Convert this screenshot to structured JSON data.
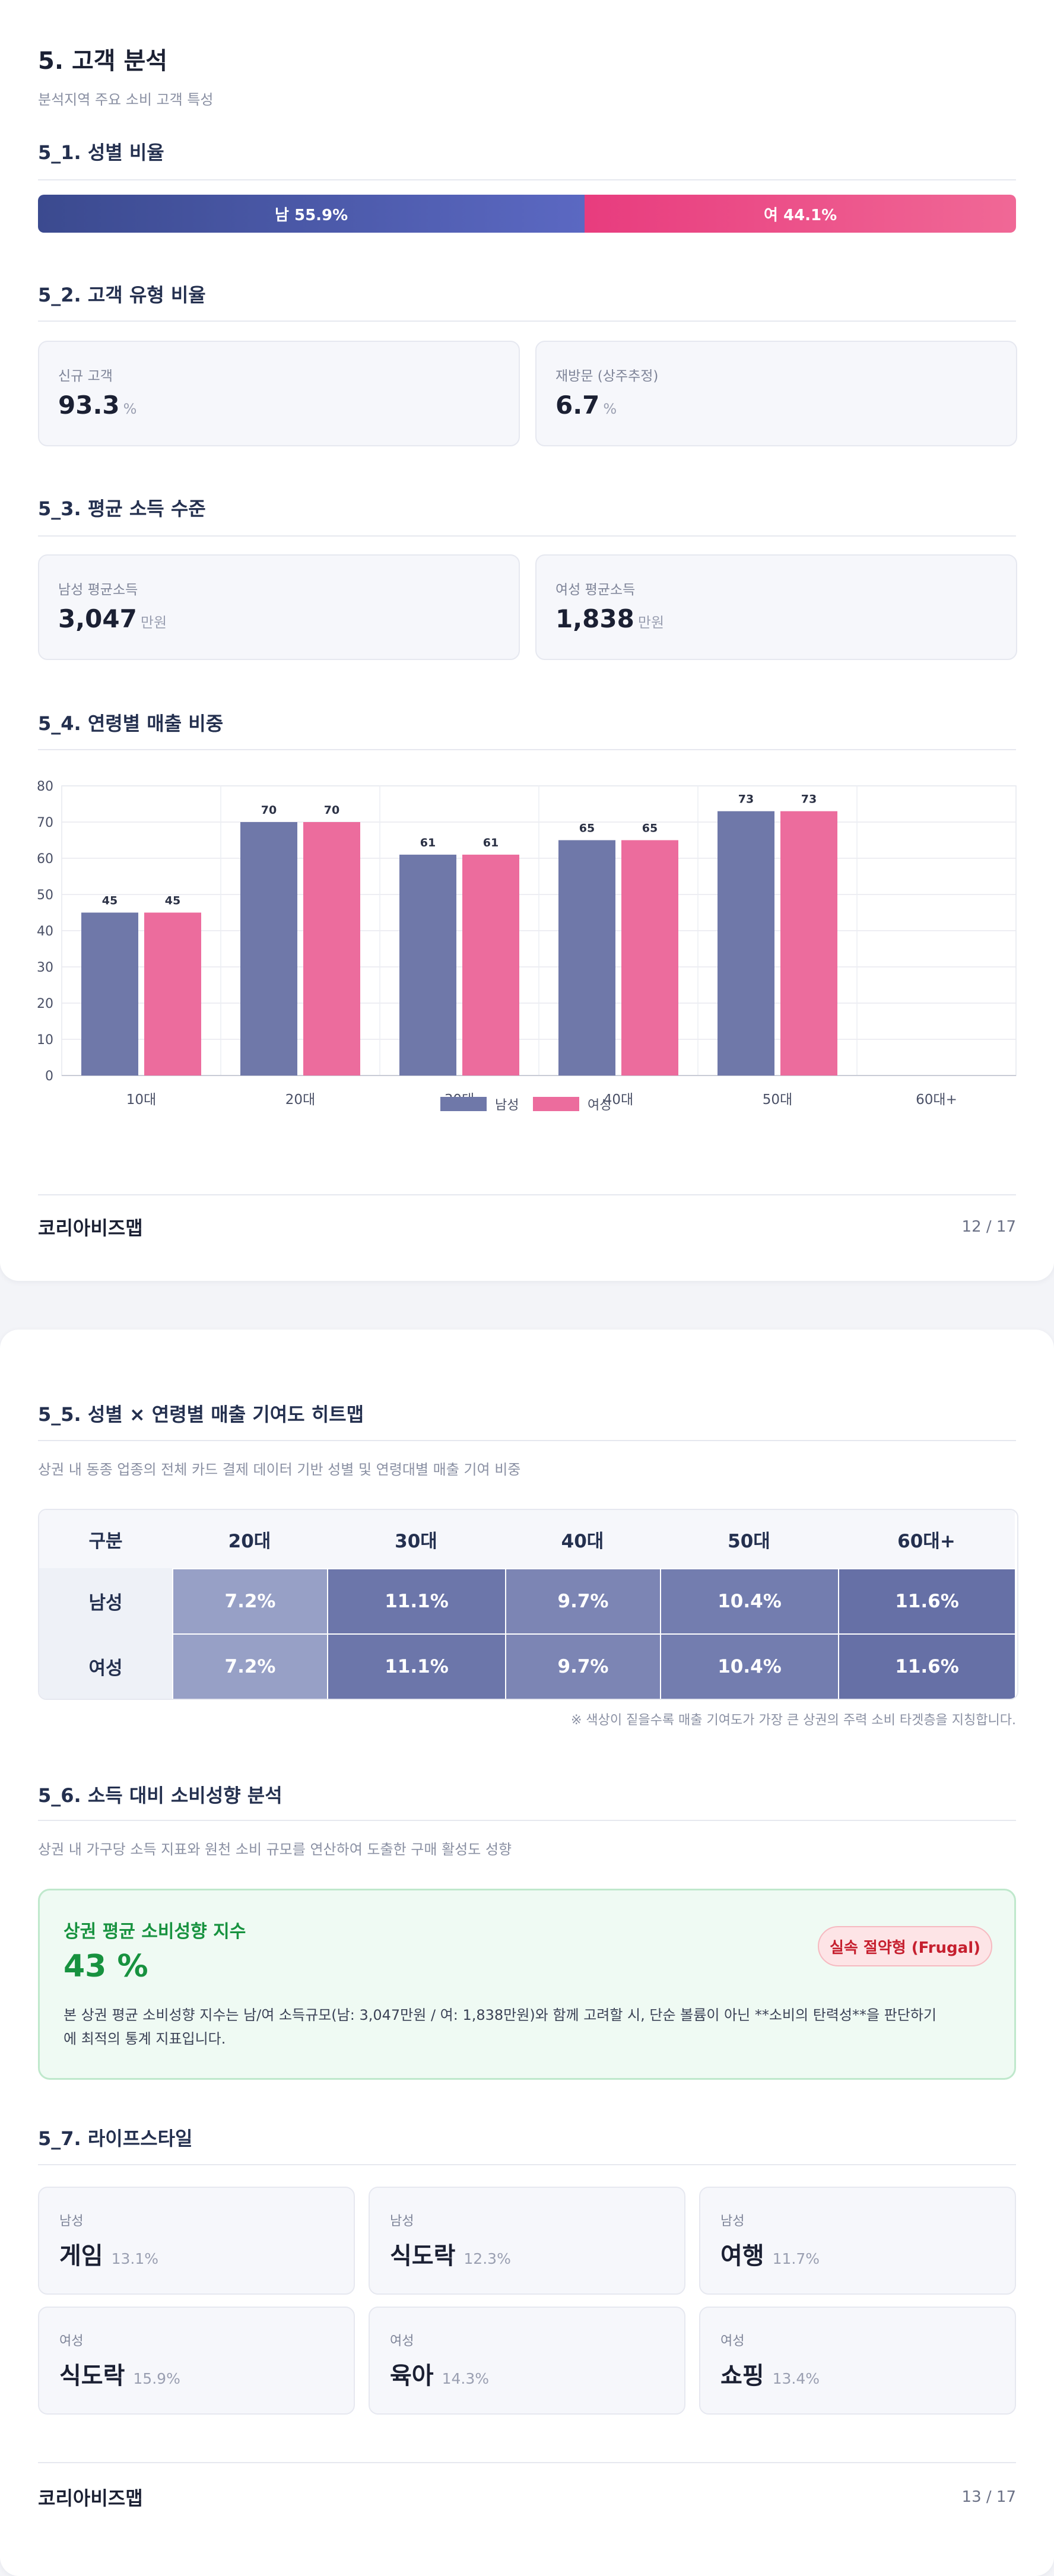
{
  "page1": {
    "section_title": "5. 고객 분석",
    "section_subtitle": "분석지역 주요 소비 고객 특성",
    "gender_ratio": {
      "title": "5_1. 성별 비율",
      "male_label": "남 55.9%",
      "female_label": "여 44.1%",
      "male_share": 55.9,
      "female_share": 44.1,
      "male_color": "#4655a6",
      "female_color": "#ec4d88"
    },
    "customer_type": {
      "title": "5_2. 고객 유형 비율",
      "cards": [
        {
          "label": "신규 고객",
          "value": "93.3",
          "unit": "%"
        },
        {
          "label": "재방문 (상주추정)",
          "value": "6.7",
          "unit": "%"
        }
      ]
    },
    "income": {
      "title": "5_3. 평균 소득 수준",
      "cards": [
        {
          "label": "남성 평균소득",
          "value": "3,047",
          "unit": "만원"
        },
        {
          "label": "여성 평균소득",
          "value": "1,838",
          "unit": "만원"
        }
      ]
    },
    "age_sales": {
      "title": "5_4. 연령별 매출 비중"
    },
    "footer": {
      "brand": "코리아비즈맵",
      "page": "12 / 17"
    }
  },
  "chart_data": {
    "type": "bar",
    "categories": [
      "10대",
      "20대",
      "30대",
      "40대",
      "50대",
      "60대+"
    ],
    "series": [
      {
        "name": "남성",
        "values": [
          45,
          70,
          61,
          65,
          73,
          null
        ],
        "color": "#6f78a9"
      },
      {
        "name": "여성",
        "values": [
          45,
          70,
          61,
          65,
          73,
          null
        ],
        "color": "#ec6c9d"
      }
    ],
    "ylim": [
      0,
      80
    ],
    "yticks": [
      0,
      10,
      20,
      30,
      40,
      50,
      60,
      70,
      80
    ],
    "grid": true,
    "legend": "bottom"
  },
  "page2": {
    "heatmap": {
      "title": "5_5. 성별 × 연령별 매출 기여도 히트맵",
      "subtitle": "상권 내 동종 업종의 전체 카드 결제 데이터 기반 성별 및 연령대별 매출 기여 비중",
      "header": [
        "구분",
        "20대",
        "30대",
        "40대",
        "50대",
        "60대+"
      ],
      "rows": [
        {
          "label": "남성",
          "values": [
            "7.2%",
            "11.1%",
            "9.7%",
            "10.4%",
            "11.6%"
          ]
        },
        {
          "label": "여성",
          "values": [
            "7.2%",
            "11.1%",
            "9.7%",
            "10.4%",
            "11.6%"
          ]
        }
      ],
      "colors": [
        "#97a0c6",
        "#6c76aa",
        "#7c85b4",
        "#737daf",
        "#6670a6"
      ],
      "note": "※ 색상이 짙을수록 매출 기여도가 가장 큰 상권의 주력 소비 타겟층을 지칭합니다."
    },
    "spending": {
      "title": "5_6. 소득 대비 소비성향 분석",
      "subtitle": "상권 내 가구당 소득 지표와 원천 소비 규모를 연산하여 도출한 구매 활성도 성향",
      "box_title": "상권 평균 소비성향 지수",
      "index_value": "43 %",
      "badge": "실속 절약형 (Frugal)",
      "description_line1": "본 상권 평균 소비성향 지수는 남/여 소득규모(남: 3,047만원 / 여: 1,838만원)와 함께 고려할 시, 단순 볼륨이 아닌 **소비의 탄력성**을 판단하기",
      "description_line2": "에 최적의 통계 지표입니다."
    },
    "lifestyle": {
      "title": "5_7. 라이프스타일",
      "cards": [
        {
          "gender": "남성",
          "name": "게임",
          "pct": "13.1%"
        },
        {
          "gender": "남성",
          "name": "식도락",
          "pct": "12.3%"
        },
        {
          "gender": "남성",
          "name": "여행",
          "pct": "11.7%"
        },
        {
          "gender": "여성",
          "name": "식도락",
          "pct": "15.9%"
        },
        {
          "gender": "여성",
          "name": "육아",
          "pct": "14.3%"
        },
        {
          "gender": "여성",
          "name": "쇼핑",
          "pct": "13.4%"
        }
      ]
    },
    "footer": {
      "brand": "코리아비즈맵",
      "page": "13 / 17"
    }
  }
}
